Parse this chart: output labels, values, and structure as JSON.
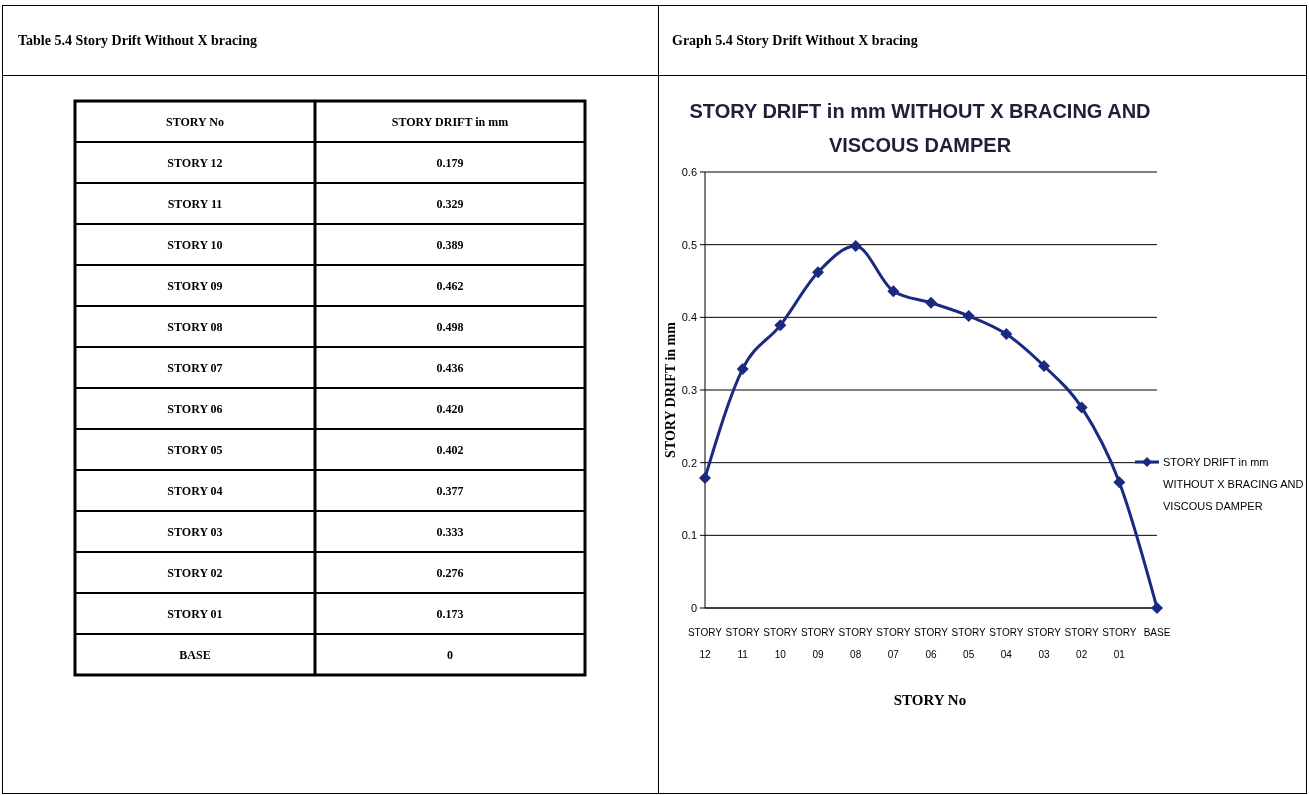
{
  "chart_data": [
    {
      "type": "other",
      "title": "Table 5.4 Story Drift Without X bracing",
      "annotations": [
        "STORY No",
        "STORY DRIFT in mm",
        "STORY 12",
        "0.179",
        "STORY 11",
        "0.329",
        "STORY 10",
        "0.389",
        "STORY 09",
        "0.462",
        "STORY 08",
        "0.498",
        "STORY 07",
        "0.436",
        "STORY 06",
        "0.420",
        "STORY 05",
        "0.402",
        "STORY 04",
        "0.377",
        "STORY 03",
        "0.333",
        "STORY 02",
        "0.276",
        "STORY 01",
        "0.173",
        "BASE",
        "0"
      ]
    },
    {
      "type": "line",
      "title": "STORY DRIFT in mm WITHOUT X BRACING AND VISCOUS DAMPER",
      "xlabel": "STORY No",
      "ylabel": "STORY DRIFT in mm",
      "annotations": [
        "Graph 5.4 Story Drift Without X bracing"
      ],
      "categories": [
        "STORY 12",
        "STORY 11",
        "STORY 10",
        "STORY 09",
        "STORY 08",
        "STORY 07",
        "STORY 06",
        "STORY 05",
        "STORY 04",
        "STORY 03",
        "STORY 02",
        "STORY 01",
        "BASE"
      ],
      "series": [
        {
          "name": "STORY DRIFT in mm WITHOUT X BRACING AND VISCOUS DAMPER",
          "color": "#1a2a80",
          "values": [
            0.179,
            0.329,
            0.389,
            0.462,
            0.498,
            0.436,
            0.42,
            0.402,
            0.377,
            0.333,
            0.276,
            0.173,
            0
          ]
        }
      ],
      "ylim": [
        0,
        0.6
      ],
      "yticks": [
        0,
        0.1,
        0.2,
        0.3,
        0.4,
        0.5,
        0.6
      ],
      "grid": "y",
      "legend": "right",
      "marker": "diamond",
      "line_style": "solid"
    }
  ]
}
